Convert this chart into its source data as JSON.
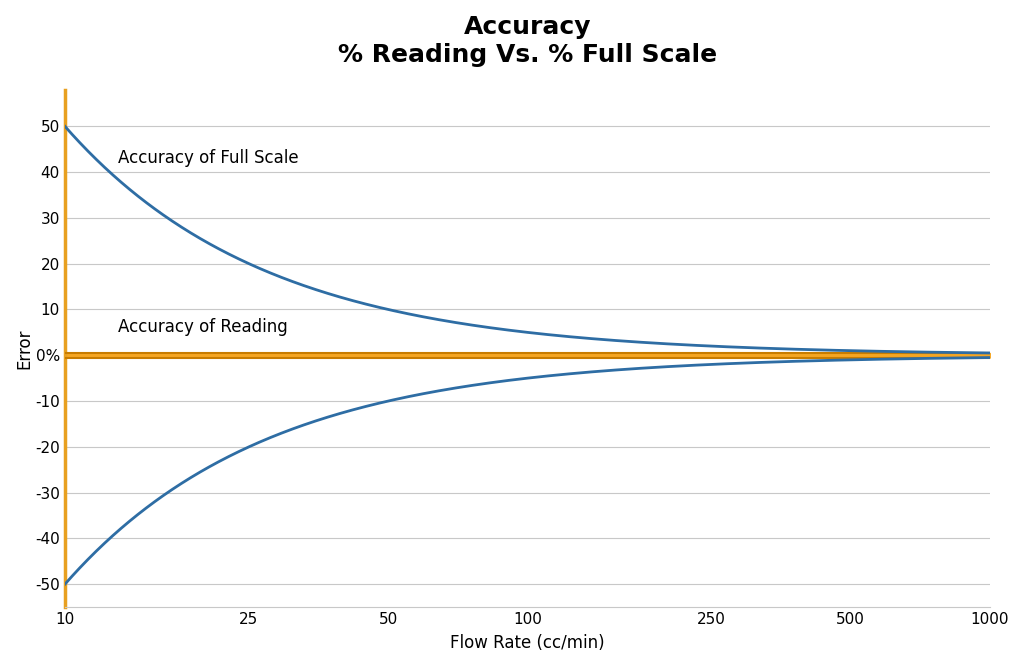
{
  "title_line1": "Accuracy",
  "title_line2": "% Reading Vs. % Full Scale",
  "xlabel": "Flow Rate (cc/min)",
  "ylabel": "Error",
  "x_ticks": [
    10,
    25,
    50,
    100,
    250,
    500,
    1000
  ],
  "ylim": [
    -55,
    58
  ],
  "yticks": [
    -50,
    -40,
    -30,
    -20,
    -10,
    0,
    10,
    20,
    30,
    40,
    50
  ],
  "x_start": 10,
  "x_end": 1000,
  "blue_color": "#2E6DA4",
  "orange_fill_color": "#F5A623",
  "orange_line_color": "#C87C00",
  "background_color": "#FFFFFF",
  "plot_bg_color": "#FFFFFF",
  "grid_color": "#C8C8C8",
  "left_spine_color": "#E8A020",
  "label_full_scale": "Accuracy of Full Scale",
  "label_reading": "Accuracy of Reading",
  "title_fontsize": 18,
  "axis_label_fontsize": 12,
  "tick_fontsize": 11,
  "annotation_fontsize": 12,
  "fs_amplitude": 500,
  "reading_band": 1.0
}
